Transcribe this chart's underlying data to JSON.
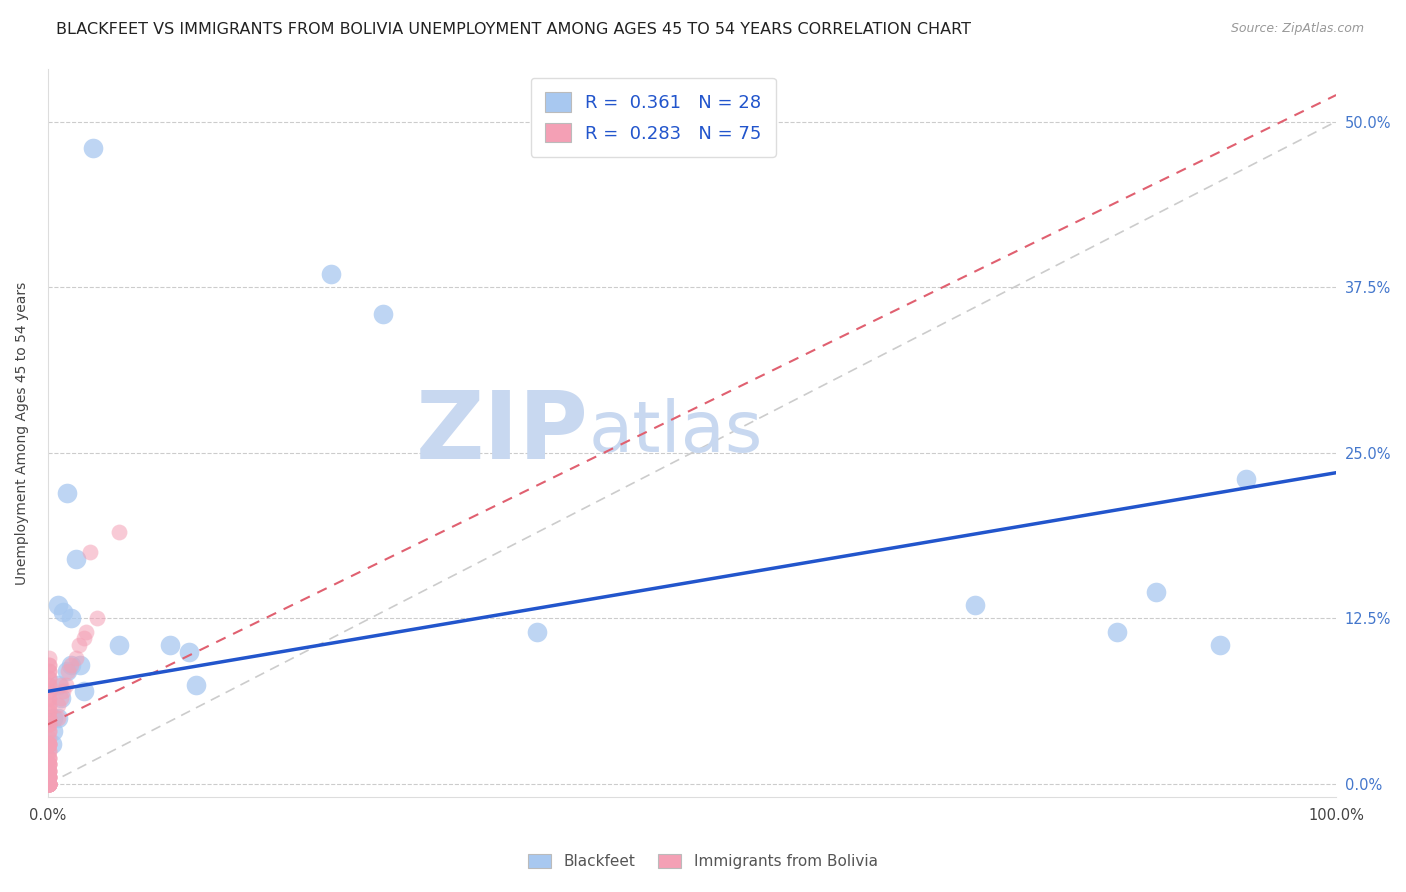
{
  "title": "BLACKFEET VS IMMIGRANTS FROM BOLIVIA UNEMPLOYMENT AMONG AGES 45 TO 54 YEARS CORRELATION CHART",
  "source": "Source: ZipAtlas.com",
  "ylabel": "Unemployment Among Ages 45 to 54 years",
  "ytick_labels": [
    "0.0%",
    "12.5%",
    "25.0%",
    "37.5%",
    "50.0%"
  ],
  "ytick_values": [
    0.0,
    0.125,
    0.25,
    0.375,
    0.5
  ],
  "xlim": [
    0.0,
    1.0
  ],
  "ylim": [
    -0.01,
    0.54
  ],
  "legend1_label": "Blackfeet",
  "legend2_label": "Immigrants from Bolivia",
  "R1": 0.361,
  "N1": 28,
  "R2": 0.283,
  "N2": 75,
  "blue_color": "#a8c8f0",
  "pink_color": "#f4a0b5",
  "blue_line_color": "#2255cc",
  "pink_line_color": "#e06070",
  "diagonal_color": "#cccccc",
  "background_color": "#ffffff",
  "watermark_zip_color": "#c8d8f0",
  "watermark_atlas_color": "#c8d8f0",
  "title_fontsize": 11.5,
  "source_fontsize": 9,
  "axis_label_fontsize": 10,
  "tick_fontsize": 10.5,
  "blackfeet_x": [
    0.035,
    0.015,
    0.022,
    0.012,
    0.008,
    0.018,
    0.025,
    0.015,
    0.028,
    0.008,
    0.01,
    0.008,
    0.004,
    0.004,
    0.003,
    0.018,
    0.055,
    0.11,
    0.115,
    0.26,
    0.22,
    0.38,
    0.72,
    0.83,
    0.93,
    0.86,
    0.91,
    0.095
  ],
  "blackfeet_y": [
    0.48,
    0.22,
    0.17,
    0.13,
    0.135,
    0.09,
    0.09,
    0.085,
    0.07,
    0.075,
    0.065,
    0.05,
    0.05,
    0.04,
    0.03,
    0.125,
    0.105,
    0.1,
    0.075,
    0.355,
    0.385,
    0.115,
    0.135,
    0.115,
    0.23,
    0.145,
    0.105,
    0.105
  ],
  "bolivia_x": [
    0.001,
    0.001,
    0.001,
    0.001,
    0.001,
    0.001,
    0.001,
    0.001,
    0.001,
    0.001,
    0.001,
    0.001,
    0.001,
    0.001,
    0.001,
    0.001,
    0.001,
    0.001,
    0.001,
    0.001,
    0.001,
    0.001,
    0.001,
    0.001,
    0.001,
    0.001,
    0.001,
    0.001,
    0.001,
    0.001,
    0.001,
    0.001,
    0.001,
    0.001,
    0.001,
    0.001,
    0.001,
    0.001,
    0.001,
    0.001,
    0.001,
    0.001,
    0.001,
    0.001,
    0.001,
    0.001,
    0.001,
    0.001,
    0.001,
    0.001,
    0.001,
    0.001,
    0.001,
    0.001,
    0.001,
    0.001,
    0.001,
    0.001,
    0.001,
    0.001,
    0.008,
    0.008,
    0.01,
    0.01,
    0.012,
    0.014,
    0.016,
    0.018,
    0.022,
    0.024,
    0.028,
    0.03,
    0.033,
    0.038,
    0.055
  ],
  "bolivia_y": [
    0.0,
    0.0,
    0.0,
    0.0,
    0.0,
    0.0,
    0.0,
    0.0,
    0.0,
    0.0,
    0.0,
    0.0,
    0.0,
    0.005,
    0.005,
    0.005,
    0.005,
    0.005,
    0.005,
    0.01,
    0.01,
    0.01,
    0.01,
    0.015,
    0.015,
    0.015,
    0.015,
    0.02,
    0.02,
    0.02,
    0.025,
    0.025,
    0.03,
    0.03,
    0.03,
    0.03,
    0.035,
    0.04,
    0.04,
    0.045,
    0.045,
    0.05,
    0.05,
    0.055,
    0.055,
    0.06,
    0.06,
    0.065,
    0.065,
    0.07,
    0.07,
    0.075,
    0.075,
    0.08,
    0.08,
    0.085,
    0.085,
    0.09,
    0.09,
    0.095,
    0.05,
    0.06,
    0.065,
    0.075,
    0.07,
    0.075,
    0.085,
    0.09,
    0.095,
    0.105,
    0.11,
    0.115,
    0.175,
    0.125,
    0.19
  ],
  "blue_line_x0": 0.0,
  "blue_line_y0": 0.07,
  "blue_line_x1": 1.0,
  "blue_line_y1": 0.235,
  "pink_line_x0": 0.0,
  "pink_line_y0": 0.045,
  "pink_line_x1": 1.0,
  "pink_line_y1": 0.52
}
